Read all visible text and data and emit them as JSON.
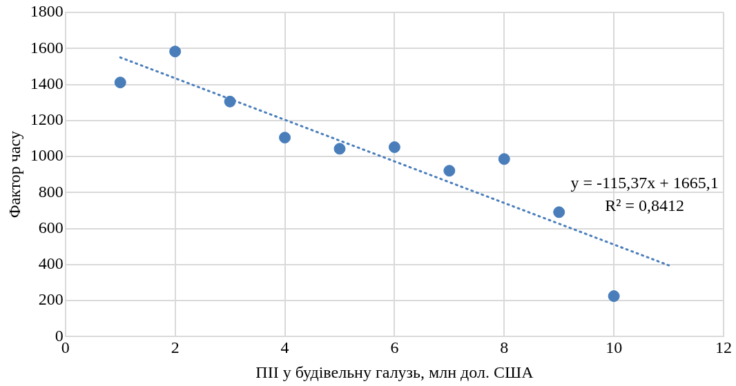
{
  "chart_data": {
    "type": "scatter",
    "xlabel": "ПІІ у будівельну галузь, млн дол. США",
    "ylabel": "Фактор часу",
    "x": [
      1,
      2,
      3,
      4,
      5,
      6,
      7,
      8,
      9,
      10
    ],
    "series": [
      {
        "type": "scatter",
        "color": "#4a7ebb",
        "values": [
          1411,
          1583,
          1305,
          1105,
          1043,
          1052,
          921,
          986,
          691,
          225
        ]
      },
      {
        "type": "line",
        "color": "#4a7ebb",
        "x": [
          1,
          11
        ],
        "values": [
          1550,
          396
        ],
        "line_style": "dotted",
        "marker": "none"
      }
    ],
    "xlim": [
      0,
      12
    ],
    "xticks": [
      0,
      2,
      4,
      6,
      8,
      10,
      12
    ],
    "ylim": [
      0,
      1800
    ],
    "yticks": [
      0,
      200,
      400,
      600,
      800,
      1000,
      1200,
      1400,
      1600,
      1800
    ],
    "grid": true,
    "legend": false,
    "marker": "circle",
    "annotations": [
      "y = -115,37x + 1665,1",
      "R² = 0,8412"
    ]
  }
}
